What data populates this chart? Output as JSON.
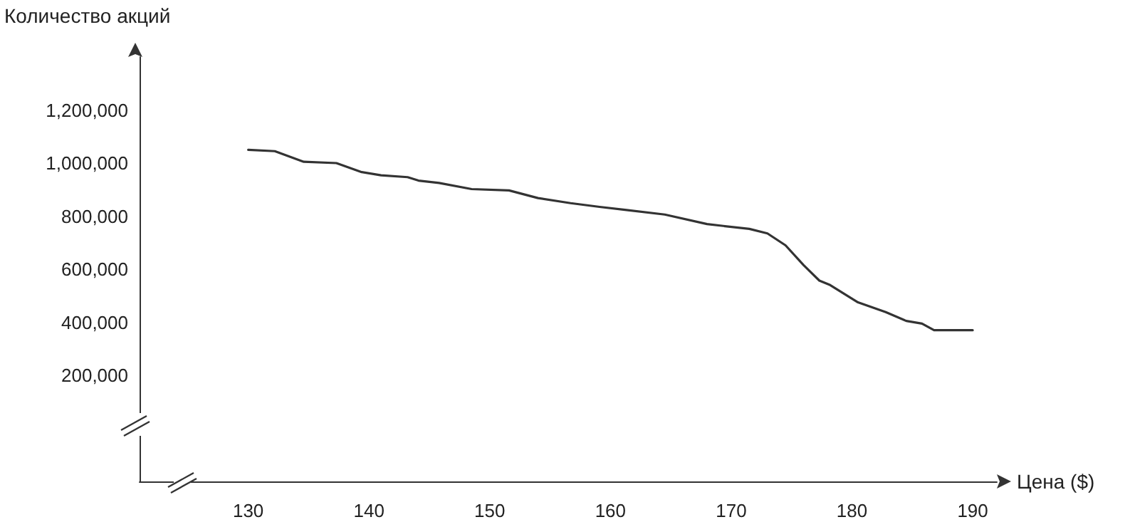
{
  "chart_data": {
    "type": "line",
    "xlabel": "Цена ($)",
    "ylabel": "Количество акций",
    "x": [
      130,
      132.2,
      134.6,
      137.3,
      139.4,
      141,
      143.2,
      144.1,
      145.8,
      148.5,
      151.6,
      154,
      156.7,
      159.1,
      161.2,
      164.5,
      168,
      171.5,
      173,
      174.5,
      176,
      177.3,
      178.2,
      180.5,
      182.8,
      184.5,
      185.8,
      186.8,
      190
    ],
    "values": [
      1050000,
      1045000,
      1005000,
      1000000,
      966000,
      954000,
      947000,
      934000,
      925000,
      902000,
      897000,
      868000,
      849000,
      835000,
      824000,
      806000,
      770000,
      752000,
      735000,
      690000,
      615000,
      557000,
      540000,
      475000,
      438000,
      405000,
      395000,
      370000,
      370000
    ],
    "color": "#333333",
    "xlim": [
      121,
      192
    ],
    "xticks": [
      130,
      140,
      150,
      160,
      170,
      180,
      190
    ],
    "ylim": [
      -200000,
      1400000
    ],
    "yticks": [
      {
        "value": 200000,
        "label": "200,000"
      },
      {
        "value": 400000,
        "label": "400,000"
      },
      {
        "value": 600000,
        "label": "600,000"
      },
      {
        "value": 800000,
        "label": "800,000"
      },
      {
        "value": 1000000,
        "label": "1,000,000"
      },
      {
        "value": 1200000,
        "label": "1,200,000"
      }
    ],
    "grid": false,
    "marker": "none",
    "line_style": "solid"
  }
}
